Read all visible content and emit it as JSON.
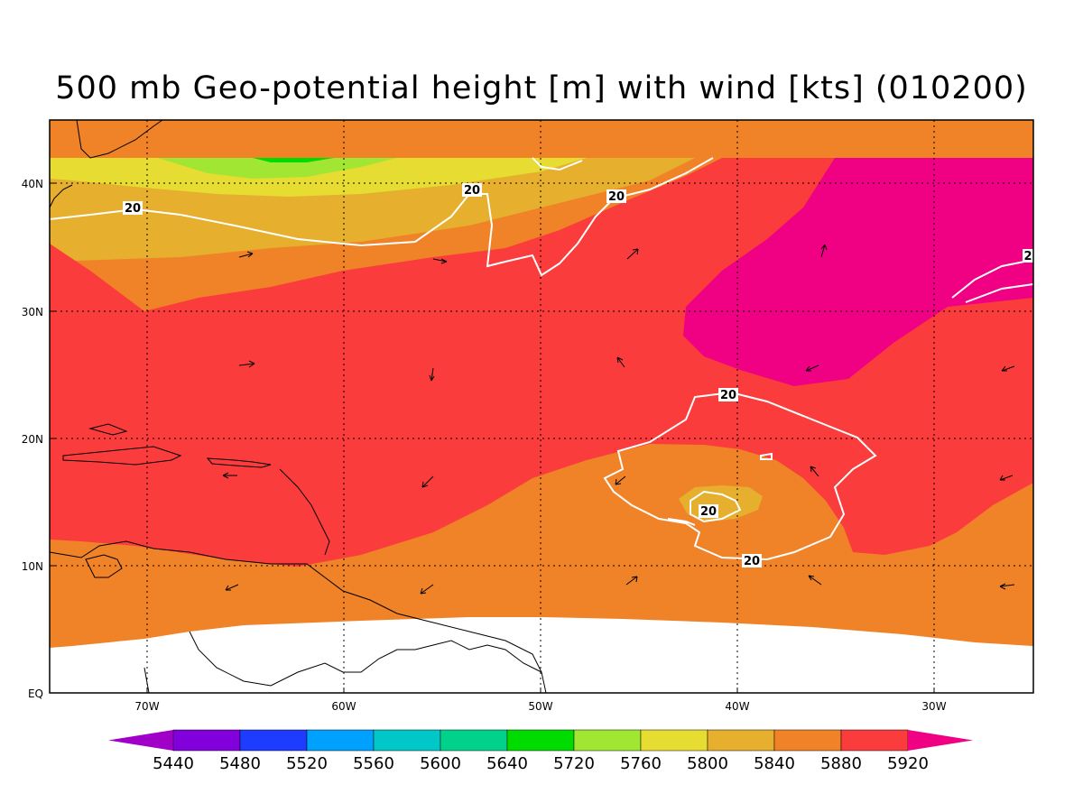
{
  "title": "500 mb Geo-potential height [m] with wind [kts] (010200)",
  "chart_data": {
    "type": "heatmap",
    "title": "500 mb Geo-potential height [m] with wind [kts] (010200)",
    "variable": "500 mb geopotential height (m), wind speed contours (kts)",
    "region": {
      "lon": [
        -75,
        -25
      ],
      "lat": [
        0,
        45
      ]
    },
    "x_ticks": [
      "70W",
      "60W",
      "50W",
      "40W",
      "30W"
    ],
    "y_ticks": [
      "EQ",
      "10N",
      "20N",
      "30N",
      "40N"
    ],
    "grid": "dotted",
    "colorbar": {
      "labels": [
        "5440",
        "5480",
        "5520",
        "5560",
        "5600",
        "5640",
        "5720",
        "5760",
        "5800",
        "5840",
        "5880",
        "5920"
      ],
      "colors": [
        "#a000c8",
        "#8200dc",
        "#1e3cff",
        "#00a0ff",
        "#00c8c8",
        "#00d28c",
        "#00dc00",
        "#a0e632",
        "#e6dc32",
        "#e6af2d",
        "#f08228",
        "#fa3c3c",
        "#f00082"
      ]
    },
    "wind_contour_labels": [
      "20",
      "20",
      "20",
      "20",
      "20",
      "20",
      "2"
    ]
  }
}
